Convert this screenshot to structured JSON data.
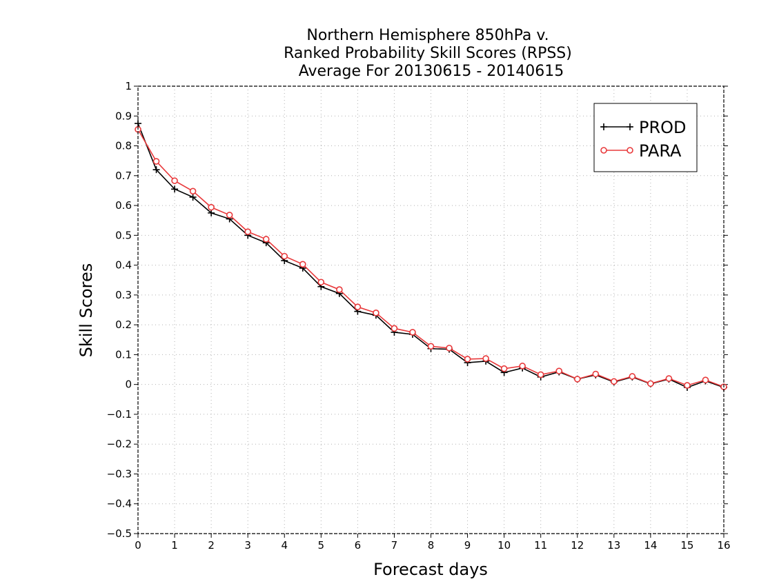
{
  "chart_data": {
    "type": "line",
    "title": [
      "Northern Hemisphere 850hPa v.",
      "Ranked Probability Skill Scores (RPSS)",
      "Average For 20130615 - 20140615"
    ],
    "xlabel": "Forecast days",
    "ylabel": "Skill Scores",
    "xlim": [
      0,
      16
    ],
    "ylim": [
      -0.5,
      1
    ],
    "xticks": [
      0,
      1,
      2,
      3,
      4,
      5,
      6,
      7,
      8,
      9,
      10,
      11,
      12,
      13,
      14,
      15,
      16
    ],
    "yticks": [
      -0.5,
      -0.4,
      -0.3,
      -0.2,
      -0.1,
      0,
      0.1,
      0.2,
      0.3,
      0.4,
      0.5,
      0.6,
      0.7,
      0.8,
      0.9,
      1
    ],
    "ytick_labels": [
      "−0.5",
      "−0.4",
      "−0.3",
      "−0.2",
      "−0.1",
      "0",
      "0.1",
      "0.2",
      "0.3",
      "0.4",
      "0.5",
      "0.6",
      "0.7",
      "0.8",
      "0.9",
      "1"
    ],
    "grid": true,
    "legend_position": "top-right",
    "x": [
      0,
      0.5,
      1,
      1.5,
      2,
      2.5,
      3,
      3.5,
      4,
      4.5,
      5,
      5.5,
      6,
      6.5,
      7,
      7.5,
      8,
      8.5,
      9,
      9.5,
      10,
      10.5,
      11,
      11.5,
      12,
      12.5,
      13,
      13.5,
      14,
      14.5,
      15,
      15.5,
      16
    ],
    "series": [
      {
        "name": "PROD",
        "color": "#000000",
        "marker": "plus",
        "values": [
          0.875,
          0.72,
          0.655,
          0.628,
          0.575,
          0.555,
          0.5,
          0.475,
          0.415,
          0.39,
          0.328,
          0.305,
          0.245,
          0.232,
          0.175,
          0.168,
          0.12,
          0.118,
          0.073,
          0.078,
          0.04,
          0.055,
          0.025,
          0.042,
          0.018,
          0.032,
          0.008,
          0.025,
          0.002,
          0.018,
          -0.01,
          0.012,
          -0.01
        ]
      },
      {
        "name": "PARA",
        "color": "#e8383a",
        "marker": "circle",
        "values": [
          0.855,
          0.748,
          0.683,
          0.648,
          0.594,
          0.568,
          0.512,
          0.487,
          0.43,
          0.403,
          0.343,
          0.318,
          0.26,
          0.24,
          0.188,
          0.175,
          0.128,
          0.122,
          0.085,
          0.087,
          0.053,
          0.062,
          0.033,
          0.045,
          0.018,
          0.035,
          0.01,
          0.027,
          0.003,
          0.02,
          -0.003,
          0.015,
          -0.008
        ]
      }
    ]
  }
}
